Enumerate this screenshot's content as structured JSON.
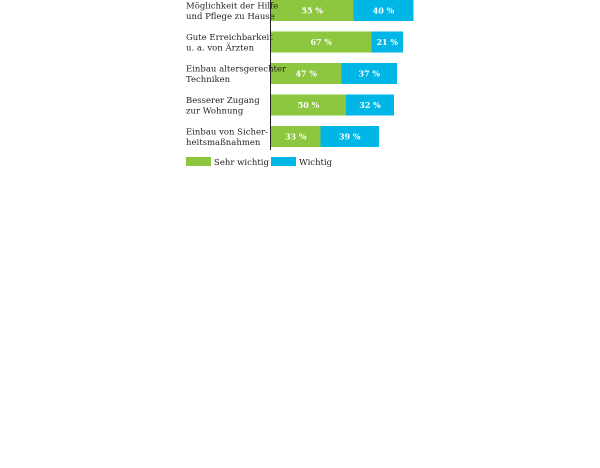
{
  "chart_data": {
    "type": "bar",
    "orientation": "horizontal",
    "stacked": true,
    "categories": [
      [
        "Möglichkeit der Hilfe",
        "und Pflege zu Hause"
      ],
      [
        "Gute Erreichbarkeit",
        "u. a. von Ärzten"
      ],
      [
        "Einbau altersgerechter",
        "Techniken"
      ],
      [
        "Besserer Zugang",
        "zur Wohnung"
      ],
      [
        "Einbau von Sicher-",
        "heitsmaßnahmen"
      ]
    ],
    "series": [
      {
        "name": "Sehr wichtig",
        "color": "#8dc63f",
        "values": [
          55,
          67,
          47,
          50,
          33
        ],
        "labels": [
          "55 %",
          "67 %",
          "47 %",
          "50 %",
          "33 %"
        ]
      },
      {
        "name": "Wichtig",
        "color": "#00b6e6",
        "values": [
          40,
          21,
          37,
          32,
          39
        ],
        "labels": [
          "40 %",
          "21 %",
          "37 %",
          "32 %",
          "39 %"
        ]
      }
    ],
    "legend_position": "bottom-left",
    "grid": false
  }
}
